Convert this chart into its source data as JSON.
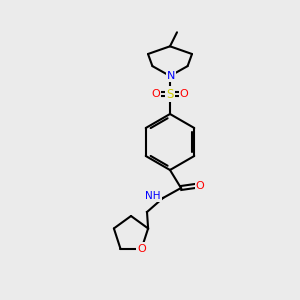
{
  "background_color": "#ebebeb",
  "figsize": [
    3.0,
    3.0
  ],
  "dpi": 100,
  "atom_colors": {
    "N": "#0000ff",
    "O": "#ff0000",
    "S": "#cccc00",
    "C": "#000000",
    "H": "#808080"
  },
  "bond_color": "#000000",
  "bond_width": 1.5,
  "font_size": 7.5
}
